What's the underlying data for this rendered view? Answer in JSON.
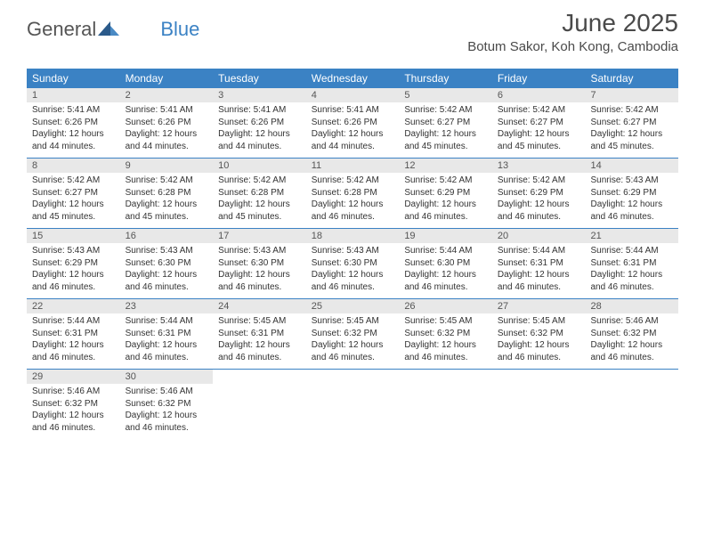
{
  "logo": {
    "part1": "General",
    "part2": "Blue"
  },
  "title": "June 2025",
  "location": "Botum Sakor, Koh Kong, Cambodia",
  "colors": {
    "header_bg": "#3b82c4",
    "header_text": "#ffffff",
    "daynum_bg": "#e8e8e8",
    "body_text": "#333333",
    "title_text": "#4a4a4a"
  },
  "day_headers": [
    "Sunday",
    "Monday",
    "Tuesday",
    "Wednesday",
    "Thursday",
    "Friday",
    "Saturday"
  ],
  "weeks": [
    [
      {
        "n": "1",
        "sr": "5:41 AM",
        "ss": "6:26 PM",
        "dl": "12 hours and 44 minutes."
      },
      {
        "n": "2",
        "sr": "5:41 AM",
        "ss": "6:26 PM",
        "dl": "12 hours and 44 minutes."
      },
      {
        "n": "3",
        "sr": "5:41 AM",
        "ss": "6:26 PM",
        "dl": "12 hours and 44 minutes."
      },
      {
        "n": "4",
        "sr": "5:41 AM",
        "ss": "6:26 PM",
        "dl": "12 hours and 44 minutes."
      },
      {
        "n": "5",
        "sr": "5:42 AM",
        "ss": "6:27 PM",
        "dl": "12 hours and 45 minutes."
      },
      {
        "n": "6",
        "sr": "5:42 AM",
        "ss": "6:27 PM",
        "dl": "12 hours and 45 minutes."
      },
      {
        "n": "7",
        "sr": "5:42 AM",
        "ss": "6:27 PM",
        "dl": "12 hours and 45 minutes."
      }
    ],
    [
      {
        "n": "8",
        "sr": "5:42 AM",
        "ss": "6:27 PM",
        "dl": "12 hours and 45 minutes."
      },
      {
        "n": "9",
        "sr": "5:42 AM",
        "ss": "6:28 PM",
        "dl": "12 hours and 45 minutes."
      },
      {
        "n": "10",
        "sr": "5:42 AM",
        "ss": "6:28 PM",
        "dl": "12 hours and 45 minutes."
      },
      {
        "n": "11",
        "sr": "5:42 AM",
        "ss": "6:28 PM",
        "dl": "12 hours and 46 minutes."
      },
      {
        "n": "12",
        "sr": "5:42 AM",
        "ss": "6:29 PM",
        "dl": "12 hours and 46 minutes."
      },
      {
        "n": "13",
        "sr": "5:42 AM",
        "ss": "6:29 PM",
        "dl": "12 hours and 46 minutes."
      },
      {
        "n": "14",
        "sr": "5:43 AM",
        "ss": "6:29 PM",
        "dl": "12 hours and 46 minutes."
      }
    ],
    [
      {
        "n": "15",
        "sr": "5:43 AM",
        "ss": "6:29 PM",
        "dl": "12 hours and 46 minutes."
      },
      {
        "n": "16",
        "sr": "5:43 AM",
        "ss": "6:30 PM",
        "dl": "12 hours and 46 minutes."
      },
      {
        "n": "17",
        "sr": "5:43 AM",
        "ss": "6:30 PM",
        "dl": "12 hours and 46 minutes."
      },
      {
        "n": "18",
        "sr": "5:43 AM",
        "ss": "6:30 PM",
        "dl": "12 hours and 46 minutes."
      },
      {
        "n": "19",
        "sr": "5:44 AM",
        "ss": "6:30 PM",
        "dl": "12 hours and 46 minutes."
      },
      {
        "n": "20",
        "sr": "5:44 AM",
        "ss": "6:31 PM",
        "dl": "12 hours and 46 minutes."
      },
      {
        "n": "21",
        "sr": "5:44 AM",
        "ss": "6:31 PM",
        "dl": "12 hours and 46 minutes."
      }
    ],
    [
      {
        "n": "22",
        "sr": "5:44 AM",
        "ss": "6:31 PM",
        "dl": "12 hours and 46 minutes."
      },
      {
        "n": "23",
        "sr": "5:44 AM",
        "ss": "6:31 PM",
        "dl": "12 hours and 46 minutes."
      },
      {
        "n": "24",
        "sr": "5:45 AM",
        "ss": "6:31 PM",
        "dl": "12 hours and 46 minutes."
      },
      {
        "n": "25",
        "sr": "5:45 AM",
        "ss": "6:32 PM",
        "dl": "12 hours and 46 minutes."
      },
      {
        "n": "26",
        "sr": "5:45 AM",
        "ss": "6:32 PM",
        "dl": "12 hours and 46 minutes."
      },
      {
        "n": "27",
        "sr": "5:45 AM",
        "ss": "6:32 PM",
        "dl": "12 hours and 46 minutes."
      },
      {
        "n": "28",
        "sr": "5:46 AM",
        "ss": "6:32 PM",
        "dl": "12 hours and 46 minutes."
      }
    ],
    [
      {
        "n": "29",
        "sr": "5:46 AM",
        "ss": "6:32 PM",
        "dl": "12 hours and 46 minutes."
      },
      {
        "n": "30",
        "sr": "5:46 AM",
        "ss": "6:32 PM",
        "dl": "12 hours and 46 minutes."
      },
      null,
      null,
      null,
      null,
      null
    ]
  ],
  "labels": {
    "sunrise": "Sunrise:",
    "sunset": "Sunset:",
    "daylight": "Daylight:"
  }
}
